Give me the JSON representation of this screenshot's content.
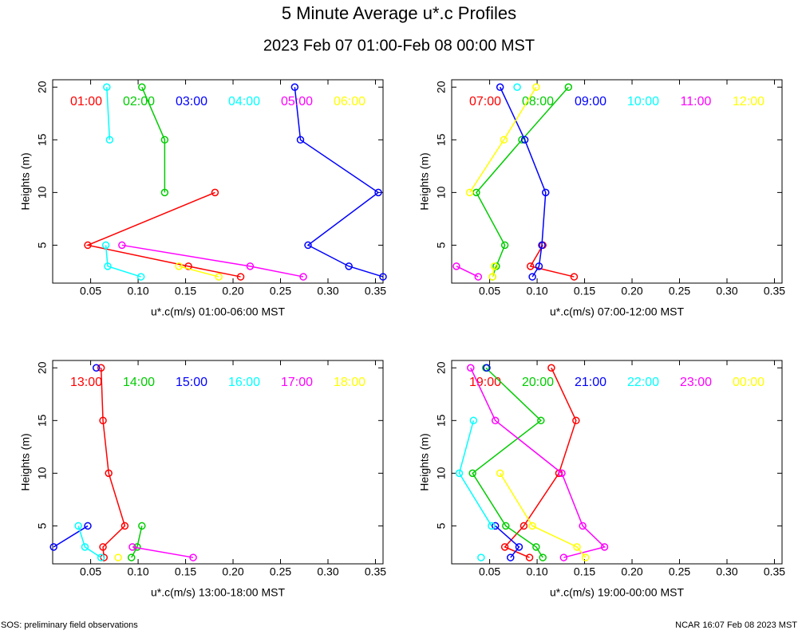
{
  "title": "5 Minute Average u*.c Profiles",
  "subtitle": "2023 Feb 07 01:00-Feb 08 00:00 MST",
  "footer_left": "SOS: preliminary field observations",
  "footer_right": "NCAR 16:07 Feb 08 2023 MST",
  "chart_data": [
    {
      "type": "line",
      "x_label": "u*.c(m/s) 01:00-06:00 MST",
      "y_label": "Heights (m)",
      "y": [
        2,
        3,
        5,
        10,
        15,
        20
      ],
      "xlim": [
        0.01,
        0.358
      ],
      "ylim": [
        1.4,
        20.7
      ],
      "xticks": [
        0.05,
        {
          "value": 0.1,
          "label": "0.10"
        },
        0.15,
        {
          "value": 0.2,
          "label": "0.20"
        },
        0.25,
        {
          "value": 0.3,
          "label": "0.30"
        },
        0.35
      ],
      "yticks": [
        5,
        10,
        15,
        20
      ],
      "series": [
        {
          "name": "01:00",
          "color": "#ff0000",
          "values": [
            0.208,
            0.153,
            0.047,
            0.181,
            null,
            null
          ]
        },
        {
          "name": "02:00",
          "color": "#00cc00",
          "values": [
            null,
            null,
            null,
            0.128,
            0.128,
            0.104
          ]
        },
        {
          "name": "03:00",
          "color": "#0000ff",
          "values": [
            0.358,
            0.322,
            0.279,
            0.353,
            0.271,
            0.265
          ]
        },
        {
          "name": "04:00",
          "color": "#00ffff",
          "values": [
            0.103,
            0.068,
            0.066,
            null,
            0.07,
            0.067
          ]
        },
        {
          "name": "05:00",
          "color": "#ff00ff",
          "values": [
            0.274,
            0.218,
            0.083,
            null,
            null,
            null
          ]
        },
        {
          "name": "06:00",
          "color": "#ffff00",
          "values": [
            0.185,
            0.143,
            null,
            null,
            null,
            null
          ]
        }
      ]
    },
    {
      "type": "line",
      "x_label": "u*.c(m/s) 07:00-12:00 MST",
      "y_label": "Heights (m)",
      "y": [
        2,
        3,
        5,
        10,
        15,
        20
      ],
      "xlim": [
        0.01,
        0.358
      ],
      "ylim": [
        1.4,
        20.7
      ],
      "xticks": [
        0.05,
        {
          "value": 0.1,
          "label": "0.10"
        },
        0.15,
        {
          "value": 0.2,
          "label": "0.20"
        },
        0.25,
        {
          "value": 0.3,
          "label": "0.30"
        },
        0.35
      ],
      "yticks": [
        5,
        10,
        15,
        20
      ],
      "series": [
        {
          "name": "07:00",
          "color": "#ff0000",
          "values": [
            0.139,
            0.093,
            0.106,
            null,
            null,
            null
          ]
        },
        {
          "name": "08:00",
          "color": "#00cc00",
          "values": [
            0.053,
            0.057,
            0.066,
            0.036,
            0.084,
            0.133
          ]
        },
        {
          "name": "09:00",
          "color": "#0000ff",
          "values": [
            0.095,
            0.102,
            0.105,
            0.109,
            0.087,
            0.061
          ]
        },
        {
          "name": "10:00",
          "color": "#00ffff",
          "values": [
            null,
            null,
            null,
            null,
            null,
            0.079
          ]
        },
        {
          "name": "11:00",
          "color": "#ff00ff",
          "values": [
            0.038,
            0.015,
            null,
            null,
            null,
            null
          ]
        },
        {
          "name": "12:00",
          "color": "#ffff00",
          "values": [
            0.053,
            0.055,
            null,
            0.029,
            0.065,
            0.099
          ]
        }
      ]
    },
    {
      "type": "line",
      "x_label": "u*.c(m/s) 13:00-18:00 MST",
      "y_label": "Heights (m)",
      "y": [
        2,
        3,
        5,
        10,
        15,
        20
      ],
      "xlim": [
        0.01,
        0.358
      ],
      "ylim": [
        1.4,
        20.7
      ],
      "xticks": [
        0.05,
        {
          "value": 0.1,
          "label": "0.10"
        },
        0.15,
        {
          "value": 0.2,
          "label": "0.20"
        },
        0.25,
        {
          "value": 0.3,
          "label": "0.30"
        },
        0.35
      ],
      "yticks": [
        5,
        10,
        15,
        20
      ],
      "series": [
        {
          "name": "13:00",
          "color": "#ff0000",
          "values": [
            0.064,
            0.063,
            0.086,
            0.069,
            0.063,
            0.061
          ]
        },
        {
          "name": "14:00",
          "color": "#00cc00",
          "values": [
            0.093,
            0.099,
            0.104,
            null,
            null,
            null
          ]
        },
        {
          "name": "15:00",
          "color": "#0000ff",
          "values": [
            null,
            0.011,
            0.047,
            null,
            null,
            0.056
          ]
        },
        {
          "name": "16:00",
          "color": "#00ffff",
          "values": [
            0.061,
            0.044,
            0.037,
            null,
            null,
            null
          ]
        },
        {
          "name": "17:00",
          "color": "#ff00ff",
          "values": [
            0.158,
            0.094,
            null,
            null,
            null,
            null
          ]
        },
        {
          "name": "18:00",
          "color": "#ffff00",
          "values": [
            0.079,
            null,
            null,
            null,
            null,
            null
          ]
        }
      ]
    },
    {
      "type": "line",
      "x_label": "u*.c(m/s) 19:00-00:00 MST",
      "y_label": "Heights (m)",
      "y": [
        2,
        3,
        5,
        10,
        15,
        20
      ],
      "xlim": [
        0.01,
        0.358
      ],
      "ylim": [
        1.4,
        20.7
      ],
      "xticks": [
        0.05,
        {
          "value": 0.1,
          "label": "0.10"
        },
        0.15,
        {
          "value": 0.2,
          "label": "0.20"
        },
        0.25,
        {
          "value": 0.3,
          "label": "0.30"
        },
        0.35
      ],
      "yticks": [
        5,
        10,
        15,
        20
      ],
      "series": [
        {
          "name": "19:00",
          "color": "#ff0000",
          "values": [
            0.092,
            0.066,
            0.086,
            0.123,
            0.141,
            0.115
          ]
        },
        {
          "name": "20:00",
          "color": "#00cc00",
          "values": [
            0.106,
            0.099,
            0.067,
            0.032,
            0.104,
            0.046
          ]
        },
        {
          "name": "21:00",
          "color": "#0000ff",
          "values": [
            0.072,
            0.081,
            0.056,
            null,
            null,
            0.047
          ]
        },
        {
          "name": "22:00",
          "color": "#00ffff",
          "values": [
            0.041,
            null,
            0.052,
            0.018,
            0.033,
            null
          ]
        },
        {
          "name": "23:00",
          "color": "#ff00ff",
          "values": [
            0.128,
            0.171,
            0.148,
            0.126,
            0.056,
            0.03
          ]
        },
        {
          "name": "00:00",
          "color": "#ffff00",
          "values": [
            0.151,
            0.142,
            0.095,
            0.061,
            null,
            null
          ]
        }
      ]
    }
  ]
}
